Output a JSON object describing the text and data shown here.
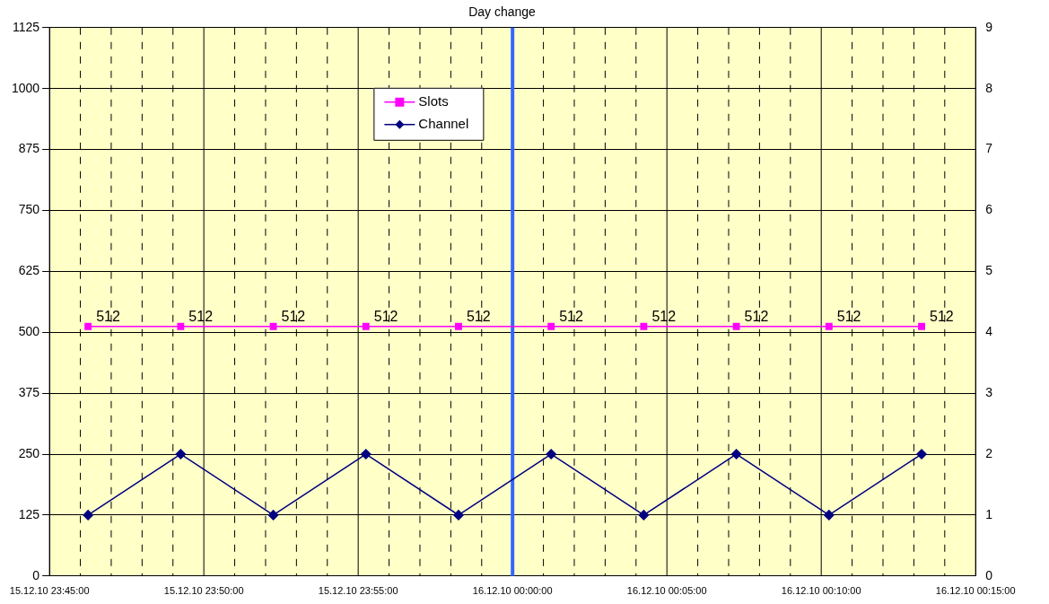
{
  "chart_data": {
    "type": "line",
    "title": "Day change",
    "xlim": [
      "--12-15T23:45",
      "--12-16T00:15"
    ],
    "xticks": [
      {
        "value": "--12-15T23:45",
        "label": "15.12.10 23:45:00"
      },
      {
        "value": "--12-15T23:46",
        "label": null
      },
      {
        "value": "--12-15T23:47",
        "label": null
      },
      {
        "value": "--12-15T23:48",
        "label": null
      },
      {
        "value": "--12-15T23:49",
        "label": null
      },
      {
        "value": "--12-15T23:50",
        "label": "15.12.10 23:50:00"
      },
      {
        "value": "--12-15T23:51",
        "label": null
      },
      {
        "value": "--12-15T23:52",
        "label": null
      },
      {
        "value": "--12-15T23:53",
        "label": null
      },
      {
        "value": "--12-15T23:54",
        "label": null
      },
      {
        "value": "--12-15T23:55",
        "label": "15.12.10 23:55:00"
      },
      {
        "value": "--12-15T23:56",
        "label": null
      },
      {
        "value": "--12-15T23:57",
        "label": null
      },
      {
        "value": "--12-15T23:58",
        "label": null
      },
      {
        "value": "--12-15T23:59",
        "label": null
      },
      {
        "value": "--12-16T00:00",
        "label": "16.12.10 00:00:00"
      },
      {
        "value": "--12-16T00:01",
        "label": null
      },
      {
        "value": "--12-16T00:02",
        "label": null
      },
      {
        "value": "--12-16T00:03",
        "label": null
      },
      {
        "value": "--12-16T00:04",
        "label": null
      },
      {
        "value": "--12-16T00:05",
        "label": "16.12.10 00:05:00"
      },
      {
        "value": "--12-16T00:06",
        "label": null
      },
      {
        "value": "--12-16T00:07",
        "label": null
      },
      {
        "value": "--12-16T00:08",
        "label": null
      },
      {
        "value": "--12-16T00:09",
        "label": null
      },
      {
        "value": "--12-16T00:10",
        "label": "16.12.10 00:10:00"
      },
      {
        "value": "--12-16T00:11",
        "label": null
      },
      {
        "value": "--12-16T00:12",
        "label": null
      },
      {
        "value": "--12-16T00:13",
        "label": null
      },
      {
        "value": "--12-16T00:14",
        "label": null
      },
      {
        "value": "--12-16T00:15",
        "label": "16.12.10 00:15:00"
      }
    ],
    "x": [
      "--12-15T23:46:15",
      "--12-15T23:49:15",
      "--12-15T23:52:15",
      "--12-15T23:55:15",
      "--12-15T23:58:15",
      "--12-16T00:01:15",
      "--12-16T00:04:15",
      "--12-16T00:07:15",
      "--12-16T00:10:15",
      "--12-16T00:13:15"
    ],
    "ylim": [
      0,
      1125
    ],
    "yticks": [
      0,
      125,
      250,
      375,
      500,
      625,
      750,
      875,
      1000,
      1125
    ],
    "y2lim": [
      0,
      9
    ],
    "y2ticks": [
      0,
      1,
      2,
      3,
      4,
      5,
      6,
      7,
      8,
      9
    ],
    "series": [
      {
        "name": "Slots",
        "color": "#ff00ff",
        "marker": "square",
        "values": [
          512,
          512,
          512,
          512,
          512,
          512,
          512,
          512,
          512,
          512
        ],
        "value_labels": [
          "512",
          "512",
          "512",
          "512",
          "512",
          "512",
          "512",
          "512",
          "512",
          "512"
        ]
      },
      {
        "name": "Channel",
        "color": "#000080",
        "marker": "diamond",
        "axis": "y2",
        "values": [
          1,
          2,
          1,
          2,
          1,
          2,
          1,
          2,
          1,
          2
        ]
      }
    ],
    "ref_lines": [
      {
        "axis": "x",
        "value": "--12-16T00:00",
        "color": "#3366ff"
      }
    ],
    "grid": true,
    "legend": "top left"
  }
}
